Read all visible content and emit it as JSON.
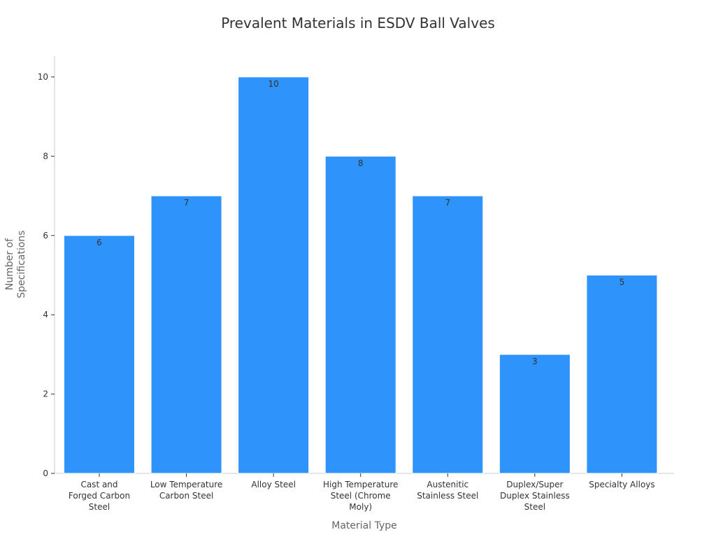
{
  "chart_data": {
    "type": "bar",
    "title": "Prevalent Materials in ESDV Ball Valves",
    "xlabel": "Material Type",
    "ylabel": "Number of Specifications",
    "ylabel_lines": [
      "Number of",
      "Specifications"
    ],
    "ylim": [
      0,
      10.5
    ],
    "yticks": [
      0,
      2,
      4,
      6,
      8,
      10
    ],
    "grid": false,
    "categories": [
      "Cast and Forged Carbon Steel",
      "Low Temperature Carbon Steel",
      "Alloy Steel",
      "High Temperature Steel (Chrome Moly)",
      "Austenitic Stainless Steel",
      "Duplex/Super Duplex Stainless Steel",
      "Specialty Alloys"
    ],
    "category_lines": [
      [
        "Cast and",
        "Forged Carbon",
        "Steel"
      ],
      [
        "Low Temperature",
        "Carbon Steel"
      ],
      [
        "Alloy Steel"
      ],
      [
        "High Temperature",
        "Steel (Chrome",
        "Moly)"
      ],
      [
        "Austenitic",
        "Stainless Steel"
      ],
      [
        "Duplex/Super",
        "Duplex Stainless",
        "Steel"
      ],
      [
        "Specialty Alloys"
      ]
    ],
    "values": [
      6,
      7,
      10,
      8,
      7,
      3,
      5
    ],
    "colors": {
      "bar": "#2e93fa"
    }
  }
}
